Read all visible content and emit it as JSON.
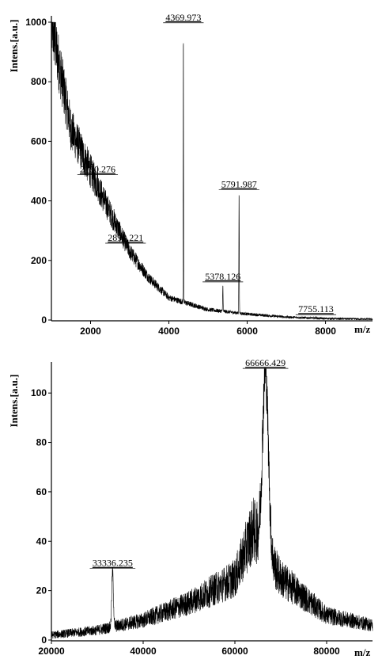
{
  "chart_data": [
    {
      "type": "line",
      "ylabel": "Intens.[a.u.]",
      "xlabel": "m/z",
      "xlim": [
        1000,
        9200
      ],
      "ylim": [
        0,
        1000
      ],
      "x_ticks": [
        2000,
        4000,
        6000,
        8000
      ],
      "y_ticks": [
        0,
        200,
        400,
        600,
        800,
        1000
      ],
      "grid": false,
      "baseline": {
        "description": "noisy exponentially decaying background",
        "x": [
          1000,
          1500,
          2000,
          2500,
          3000,
          3500,
          4000,
          4500,
          5000,
          6000,
          7000,
          8000,
          9000
        ],
        "y": [
          1000,
          640,
          500,
          360,
          230,
          140,
          75,
          55,
          35,
          20,
          10,
          5,
          3
        ]
      },
      "peaks": [
        {
          "label": "2180.276",
          "x": 2180.276,
          "y": 480
        },
        {
          "label": "2893.221",
          "x": 2893.221,
          "y": 250
        },
        {
          "label": "4369.973",
          "x": 4369.973,
          "y": 990
        },
        {
          "label": "5378.126",
          "x": 5378.126,
          "y": 120
        },
        {
          "label": "5791.987",
          "x": 5791.987,
          "y": 430
        },
        {
          "label": "7755.113",
          "x": 7755.113,
          "y": 10
        }
      ]
    },
    {
      "type": "line",
      "ylabel": "Intens.[a.u.]",
      "xlabel": "m/z",
      "xlim": [
        20000,
        90000
      ],
      "ylim": [
        0,
        110
      ],
      "x_ticks": [
        20000,
        40000,
        60000,
        80000
      ],
      "y_ticks": [
        0,
        20,
        40,
        60,
        80,
        100
      ],
      "grid": false,
      "baseline": {
        "description": "noisy background rising toward main peak",
        "x": [
          20000,
          30000,
          40000,
          50000,
          60000,
          64000,
          70000,
          80000,
          90000
        ],
        "y": [
          2,
          4,
          8,
          15,
          25,
          45,
          25,
          10,
          6
        ]
      },
      "peaks": [
        {
          "label": "33336.235",
          "x": 33336.235,
          "y": 28
        },
        {
          "label": "66666.429",
          "x": 66666.429,
          "y": 109
        }
      ]
    }
  ]
}
